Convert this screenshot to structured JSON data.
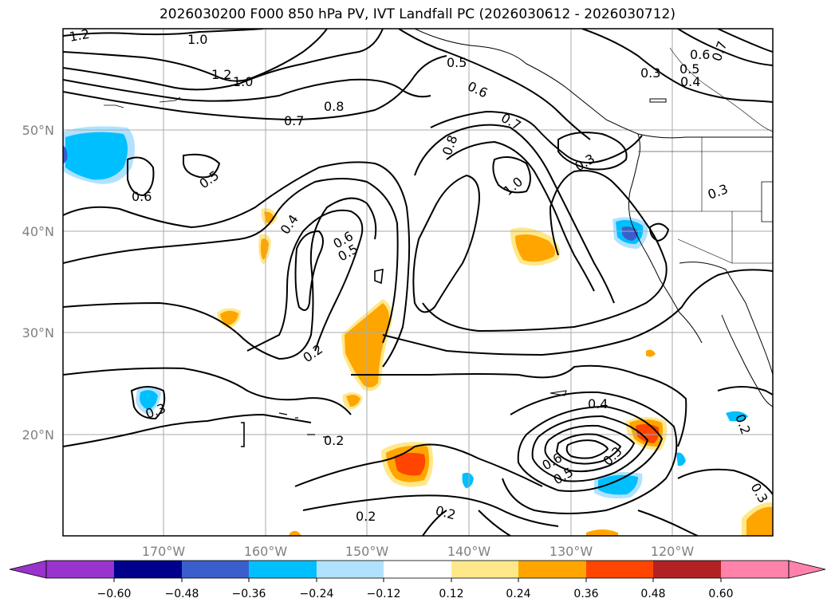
{
  "title": "2026030200 F000 850 hPa PV, IVT Landfall PC (2026030612 - 2026030712)",
  "lat_labels": [
    "50°N",
    "40°N",
    "30°N",
    "20°N"
  ],
  "lon_labels": [
    "170°W",
    "160°W",
    "150°W",
    "140°W",
    "130°W",
    "120°W"
  ],
  "contour_labels": [
    "1.2",
    "1.0",
    "1.2",
    "1.0",
    "0.8",
    "0.7",
    "0.5",
    "0.6",
    "0.7",
    "0.8",
    "1.0",
    "0.3",
    "0.6",
    "0.5",
    "0.4",
    "0.7",
    "0.3",
    "0.3",
    "0.5",
    "0.6",
    "0.4",
    "0.6",
    "0.5",
    "0.2",
    "0.3",
    "0.2",
    "0.4",
    "0.6",
    "0.5",
    "0.3",
    "0.2",
    "0.2",
    "0.2",
    "0.3"
  ],
  "colorbar": {
    "ticks": [
      "−0.60",
      "−0.48",
      "−0.36",
      "−0.24",
      "−0.12",
      "0.12",
      "0.24",
      "0.36",
      "0.48",
      "0.60"
    ],
    "colors": [
      "#9a32cd",
      "#00008b",
      "#3a5fcd",
      "#00bfff",
      "#b0e2ff",
      "#ffffff",
      "#ffe88a",
      "#ffa500",
      "#ff4500",
      "#b22222",
      "#ff82ab",
      "#ff82ab"
    ]
  },
  "colors": {
    "frame": "#000000",
    "grid": "#aaaaaa",
    "axis_label": "#808080",
    "pos_light": "#ffe88a",
    "pos_mid": "#ffa500",
    "pos_high": "#ff4500",
    "neg_light": "#b0e2ff",
    "neg_mid": "#00bfff",
    "neg_high": "#3a5fcd",
    "neg_max": "#9a32cd"
  }
}
